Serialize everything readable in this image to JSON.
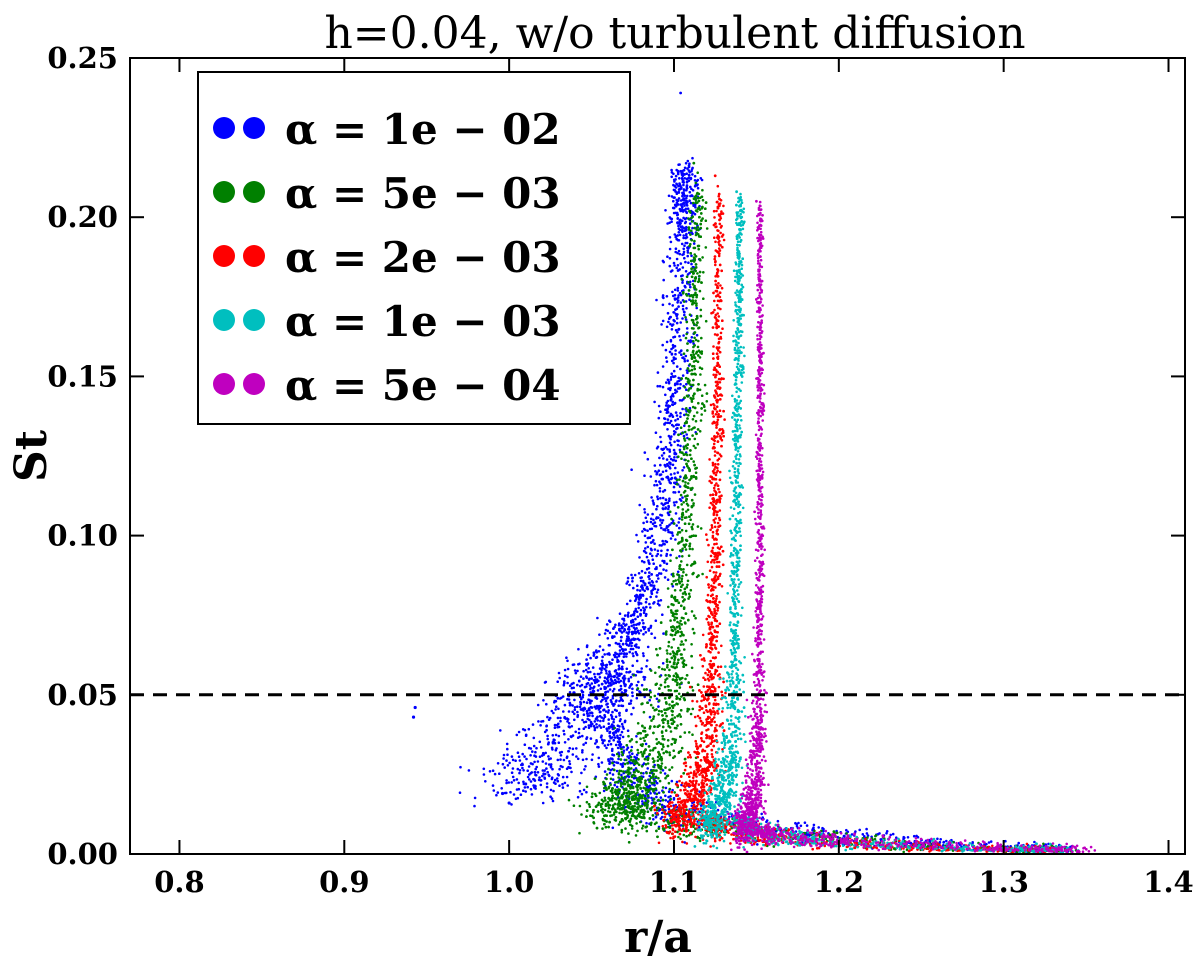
{
  "chart_data": {
    "type": "scatter",
    "title": "h=0.04, w/o turbulent diffusion",
    "xlabel": "r/a",
    "ylabel": "St",
    "xlim": [
      0.77,
      1.41
    ],
    "ylim": [
      0.0,
      0.25
    ],
    "xticks": [
      "0.8",
      "0.9",
      "1.0",
      "1.1",
      "1.2",
      "1.3",
      "1.4"
    ],
    "yticks": [
      "0.00",
      "0.05",
      "0.10",
      "0.15",
      "0.20",
      "0.25"
    ],
    "reference_line": {
      "y": 0.05,
      "style": "dashed",
      "color": "#000000"
    },
    "legend": {
      "placement": "top-left"
    },
    "series": [
      {
        "name": "α = 1e − 02",
        "color": "#0000ff",
        "spine": [
          [
            1.005,
            0.02
          ],
          [
            1.02,
            0.027
          ],
          [
            1.04,
            0.04
          ],
          [
            1.055,
            0.05
          ],
          [
            1.06,
            0.056
          ],
          [
            1.075,
            0.07
          ],
          [
            1.088,
            0.09
          ],
          [
            1.097,
            0.12
          ],
          [
            1.102,
            0.16
          ],
          [
            1.105,
            0.2
          ],
          [
            1.106,
            0.215
          ]
        ],
        "tail": [
          [
            1.06,
            0.036
          ],
          [
            1.08,
            0.021
          ],
          [
            1.1,
            0.014
          ],
          [
            1.14,
            0.009
          ],
          [
            1.18,
            0.006
          ],
          [
            1.22,
            0.004
          ],
          [
            1.26,
            0.002
          ],
          [
            1.3,
            0.001
          ],
          [
            1.34,
            0.0003
          ]
        ],
        "max_st": 0.239
      },
      {
        "name": "α = 5e − 03",
        "color": "#008000",
        "spine": [
          [
            1.06,
            0.012
          ],
          [
            1.068,
            0.016
          ],
          [
            1.075,
            0.021
          ],
          [
            1.085,
            0.027
          ],
          [
            1.094,
            0.04
          ],
          [
            1.1,
            0.06
          ],
          [
            1.106,
            0.09
          ],
          [
            1.11,
            0.13
          ],
          [
            1.112,
            0.17
          ],
          [
            1.114,
            0.208
          ]
        ],
        "tail": [
          [
            1.07,
            0.015
          ],
          [
            1.09,
            0.011
          ],
          [
            1.11,
            0.008
          ],
          [
            1.15,
            0.006
          ],
          [
            1.19,
            0.004
          ],
          [
            1.23,
            0.002
          ],
          [
            1.27,
            0.001
          ],
          [
            1.31,
            0.0004
          ],
          [
            1.34,
            0.0001
          ]
        ],
        "max_st": 0.217
      },
      {
        "name": "α = 2e − 03",
        "color": "#ff0000",
        "spine": [
          [
            1.1,
            0.009
          ],
          [
            1.108,
            0.014
          ],
          [
            1.114,
            0.02
          ],
          [
            1.12,
            0.032
          ],
          [
            1.123,
            0.06
          ],
          [
            1.125,
            0.1
          ],
          [
            1.126,
            0.15
          ],
          [
            1.127,
            0.207
          ]
        ],
        "tail": [
          [
            1.12,
            0.009
          ],
          [
            1.14,
            0.006
          ],
          [
            1.17,
            0.004
          ],
          [
            1.21,
            0.002
          ],
          [
            1.25,
            0.001
          ],
          [
            1.29,
            0.0004
          ],
          [
            1.33,
            0.0001
          ]
        ],
        "max_st": 0.213
      },
      {
        "name": "α = 1e − 03",
        "color": "#00bfbf",
        "spine": [
          [
            1.12,
            0.008
          ],
          [
            1.126,
            0.012
          ],
          [
            1.131,
            0.02
          ],
          [
            1.135,
            0.035
          ],
          [
            1.137,
            0.07
          ],
          [
            1.138,
            0.12
          ],
          [
            1.139,
            0.17
          ],
          [
            1.14,
            0.206
          ]
        ],
        "tail": [
          [
            1.14,
            0.008
          ],
          [
            1.16,
            0.005
          ],
          [
            1.19,
            0.003
          ],
          [
            1.23,
            0.002
          ],
          [
            1.27,
            0.001
          ],
          [
            1.31,
            0.0003
          ],
          [
            1.34,
            0.0001
          ]
        ],
        "max_st": 0.208
      },
      {
        "name": "α = 5e − 04",
        "color": "#bf00bf",
        "spine": [
          [
            1.14,
            0.007
          ],
          [
            1.145,
            0.011
          ],
          [
            1.149,
            0.018
          ],
          [
            1.151,
            0.04
          ],
          [
            1.152,
            0.09
          ],
          [
            1.152,
            0.15
          ],
          [
            1.152,
            0.204
          ]
        ],
        "tail": [
          [
            1.15,
            0.006
          ],
          [
            1.18,
            0.004
          ],
          [
            1.21,
            0.003
          ],
          [
            1.25,
            0.002
          ],
          [
            1.29,
            0.001
          ],
          [
            1.32,
            0.0004
          ],
          [
            1.35,
            0.0001
          ]
        ],
        "max_st": 0.205
      }
    ]
  }
}
